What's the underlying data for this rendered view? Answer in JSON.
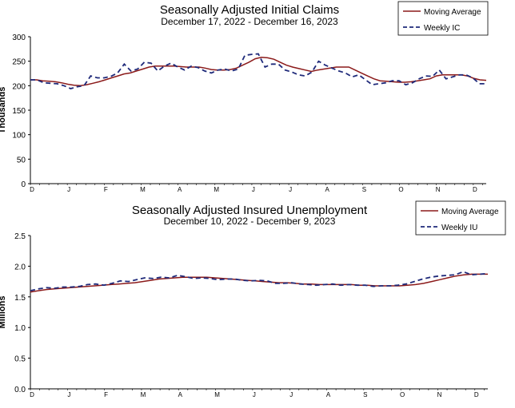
{
  "chart_data": [
    {
      "type": "line",
      "title": "Seasonally Adjusted Initial Claims",
      "subtitle": "December 17, 2022 - December 16, 2023",
      "ylabel": "Thousands",
      "xlabel": "",
      "ylim": [
        0,
        300
      ],
      "yticks": [
        "0",
        "50",
        "100",
        "150",
        "200",
        "250",
        "300"
      ],
      "month_labels": [
        "D",
        "J",
        "F",
        "M",
        "A",
        "M",
        "J",
        "J",
        "A",
        "S",
        "O",
        "N",
        "D"
      ],
      "legend_position": "top-right",
      "grid": false,
      "series": [
        {
          "name": "Moving Average",
          "color": "#8B1A1A",
          "style": "solid",
          "values": [
            212,
            212,
            210,
            209,
            208,
            206,
            203,
            201,
            200,
            202,
            205,
            208,
            212,
            216,
            220,
            224,
            226,
            230,
            234,
            238,
            240,
            240,
            240,
            240,
            239,
            238,
            238,
            238,
            236,
            233,
            232,
            232,
            233,
            236,
            242,
            248,
            255,
            258,
            257,
            254,
            248,
            242,
            238,
            235,
            232,
            229,
            232,
            234,
            236,
            238,
            238,
            238,
            232,
            226,
            220,
            214,
            210,
            209,
            208,
            207,
            207,
            208,
            210,
            212,
            214,
            220,
            222,
            222,
            222,
            222,
            220,
            215,
            212,
            211
          ]
        },
        {
          "name": "Weekly IC",
          "color": "#1F2A7A",
          "style": "dashed",
          "values": [
            212,
            212,
            206,
            205,
            204,
            200,
            194,
            198,
            200,
            220,
            216,
            216,
            219,
            226,
            244,
            230,
            234,
            248,
            246,
            230,
            240,
            246,
            238,
            232,
            240,
            237,
            230,
            226,
            232,
            234,
            230,
            234,
            262,
            264,
            265,
            238,
            244,
            244,
            232,
            228,
            222,
            220,
            228,
            250,
            242,
            236,
            230,
            226,
            218,
            222,
            212,
            202,
            204,
            206,
            210,
            210,
            202,
            206,
            214,
            220,
            219,
            232,
            214,
            218,
            222,
            222,
            216,
            204,
            204
          ]
        }
      ]
    },
    {
      "type": "line",
      "title": "Seasonally Adjusted Insured Unemployment",
      "subtitle": "December 10, 2022 - December 9, 2023",
      "ylabel": "Millions",
      "xlabel": "",
      "ylim": [
        0,
        2.5
      ],
      "yticks": [
        "0.0",
        "0.5",
        "1.0",
        "1.5",
        "2.0",
        "2.5"
      ],
      "month_labels": [
        "D",
        "J",
        "F",
        "M",
        "A",
        "M",
        "J",
        "J",
        "A",
        "S",
        "O",
        "N",
        "D"
      ],
      "legend_position": "top-right",
      "grid": false,
      "series": [
        {
          "name": "Moving Average",
          "color": "#8B1A1A",
          "style": "solid",
          "values": [
            1.58,
            1.6,
            1.62,
            1.63,
            1.64,
            1.65,
            1.66,
            1.67,
            1.68,
            1.69,
            1.7,
            1.71,
            1.72,
            1.73,
            1.75,
            1.77,
            1.79,
            1.8,
            1.81,
            1.82,
            1.82,
            1.82,
            1.82,
            1.81,
            1.8,
            1.79,
            1.78,
            1.77,
            1.76,
            1.75,
            1.74,
            1.73,
            1.73,
            1.72,
            1.71,
            1.71,
            1.7,
            1.7,
            1.7,
            1.7,
            1.7,
            1.69,
            1.69,
            1.68,
            1.68,
            1.68,
            1.68,
            1.69,
            1.7,
            1.72,
            1.75,
            1.78,
            1.81,
            1.84,
            1.86,
            1.87,
            1.87,
            1.87
          ]
        },
        {
          "name": "Weekly IU",
          "color": "#1F2A7A",
          "style": "dashed",
          "values": [
            1.6,
            1.63,
            1.65,
            1.64,
            1.66,
            1.66,
            1.67,
            1.7,
            1.71,
            1.69,
            1.72,
            1.76,
            1.75,
            1.78,
            1.81,
            1.8,
            1.82,
            1.81,
            1.85,
            1.83,
            1.8,
            1.81,
            1.8,
            1.78,
            1.79,
            1.79,
            1.77,
            1.76,
            1.77,
            1.76,
            1.72,
            1.72,
            1.73,
            1.71,
            1.7,
            1.69,
            1.7,
            1.71,
            1.69,
            1.7,
            1.69,
            1.69,
            1.67,
            1.68,
            1.68,
            1.69,
            1.71,
            1.75,
            1.79,
            1.82,
            1.84,
            1.85,
            1.86,
            1.91,
            1.86,
            1.87,
            1.88
          ]
        }
      ]
    }
  ]
}
